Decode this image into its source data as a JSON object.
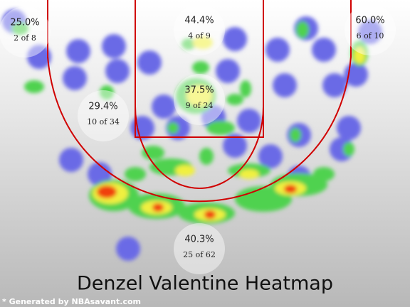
{
  "chart_data": {
    "type": "shotchart",
    "title": "Denzel Valentine Heatmap",
    "footer": "* Generated by NBAsavant.com",
    "values": [
      25.0,
      44.4,
      60.0,
      29.4,
      37.5,
      40.3
    ],
    "value_labels": [
      "25.0%",
      "44.4%",
      "60.0%",
      "29.4%",
      "37.5%",
      "40.3%"
    ],
    "records": [
      "2 of 8",
      "4 of 9",
      "6 of 10",
      "10 of 34",
      "9 of 24",
      "25 of 62"
    ]
  }
}
